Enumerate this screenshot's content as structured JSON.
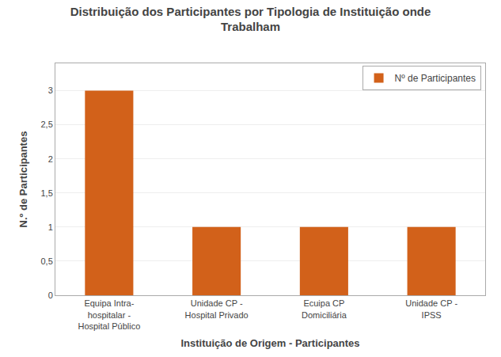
{
  "chart_data": {
    "type": "bar",
    "title": "Distribuição dos Participantes por Tipologia de Instituição onde\nTrabalham",
    "xlabel": "Instituição de Origem - Participantes",
    "ylabel": "N.º de Participantes",
    "categories": [
      "Equipa Intra-\nhospitalar -\nHospital Público",
      "Unidade CP -\nHospital Privado",
      "Ecuipa CP\nDomiciliária",
      "Unidade CP -\nIPSS"
    ],
    "series": [
      {
        "name": "Nº de Participantes",
        "color": "#D2611A",
        "values": [
          3,
          1,
          1,
          1
        ]
      }
    ],
    "ylim": [
      0,
      3.4
    ],
    "yticks": [
      0,
      {
        "value": 0.5,
        "label": "0,5"
      },
      1,
      {
        "value": 1.5,
        "label": "1,5"
      },
      2,
      {
        "value": 2.5,
        "label": "2,5"
      },
      3
    ],
    "grid": true,
    "legend": "upper right"
  }
}
